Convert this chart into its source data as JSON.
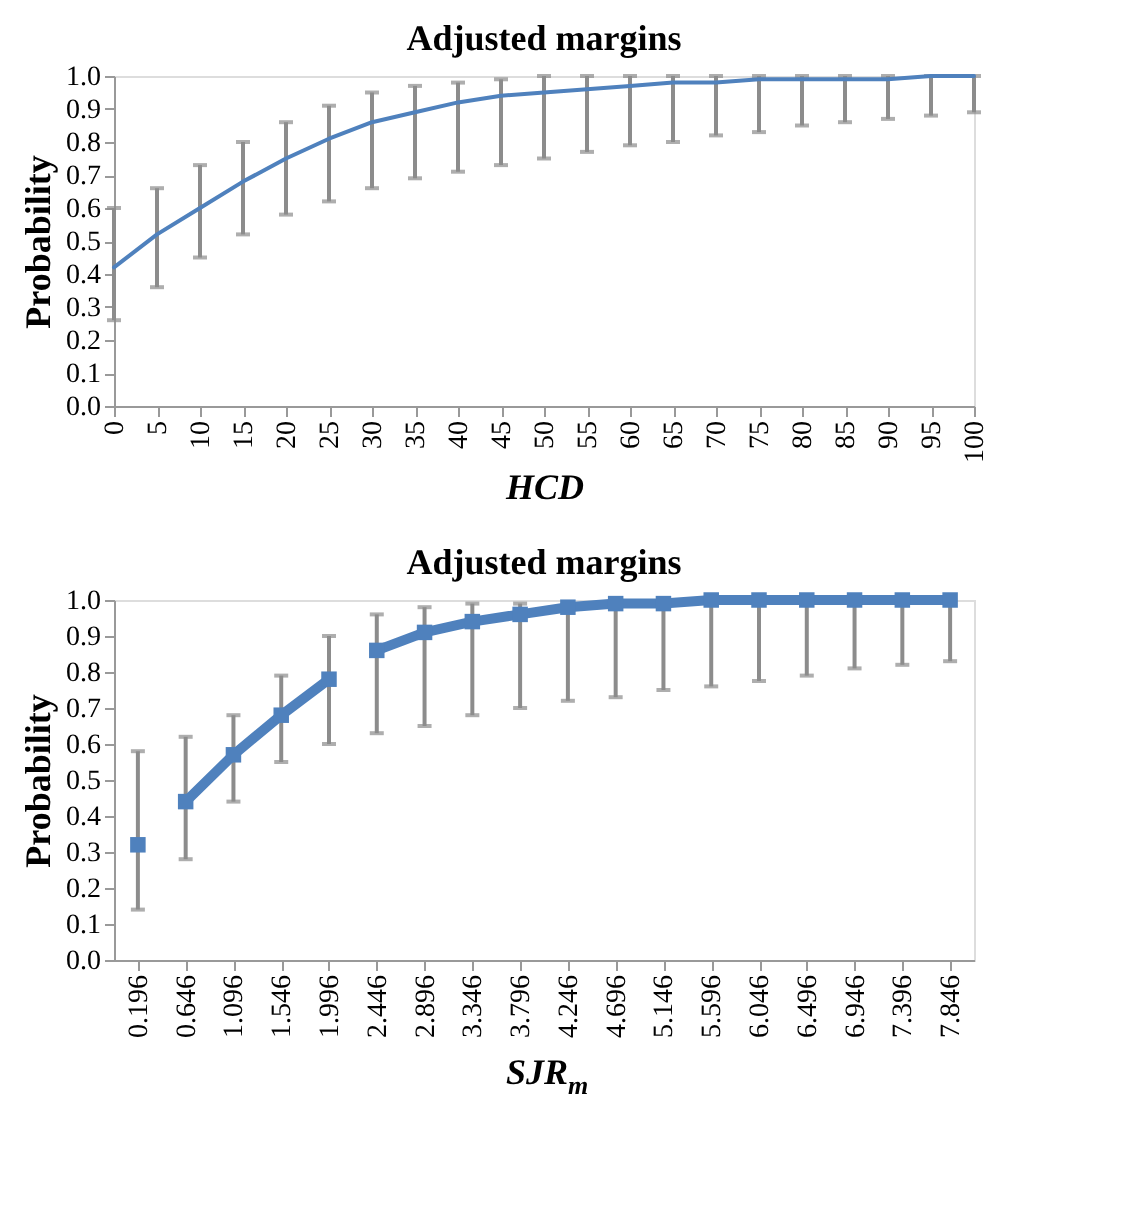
{
  "chart_data": [
    {
      "type": "line",
      "title": "Adjusted margins",
      "xlabel": "HCD",
      "ylabel": "Probability",
      "x": [
        0,
        5,
        10,
        15,
        20,
        25,
        30,
        35,
        40,
        45,
        50,
        55,
        60,
        65,
        70,
        75,
        80,
        85,
        90,
        95,
        100
      ],
      "xlim": [
        0,
        100
      ],
      "xticks": [
        0,
        5,
        10,
        15,
        20,
        25,
        30,
        35,
        40,
        45,
        50,
        55,
        60,
        65,
        70,
        75,
        80,
        85,
        90,
        95,
        100
      ],
      "ylim": [
        0,
        1
      ],
      "yticks": [
        {
          "value": 0,
          "label": "0.0"
        },
        {
          "value": 0.1,
          "label": "0.1"
        },
        {
          "value": 0.2,
          "label": "0.2"
        },
        {
          "value": 0.3,
          "label": "0.3"
        },
        {
          "value": 0.4,
          "label": "0.4"
        },
        {
          "value": 0.5,
          "label": "0.5"
        },
        {
          "value": 0.6,
          "label": "0.6"
        },
        {
          "value": 0.7,
          "label": "0.7"
        },
        {
          "value": 0.8,
          "label": "0.8"
        },
        {
          "value": 0.9,
          "label": "0.9"
        },
        {
          "value": 1,
          "label": "1.0"
        }
      ],
      "grid": false,
      "marker": "none",
      "line_style": "solid",
      "series": [
        {
          "color": "#4f81bd",
          "values": [
            0.42,
            0.52,
            0.6,
            0.68,
            0.75,
            0.81,
            0.86,
            0.89,
            0.92,
            0.94,
            0.95,
            0.96,
            0.97,
            0.98,
            0.98,
            0.99,
            0.99,
            0.99,
            0.99,
            1.0,
            1.0
          ],
          "errors": [
            [
              0.26,
              0.6
            ],
            [
              0.36,
              0.66
            ],
            [
              0.45,
              0.73
            ],
            [
              0.52,
              0.8
            ],
            [
              0.58,
              0.86
            ],
            [
              0.62,
              0.91
            ],
            [
              0.66,
              0.95
            ],
            [
              0.69,
              0.97
            ],
            [
              0.71,
              0.98
            ],
            [
              0.73,
              0.99
            ],
            [
              0.75,
              1.0
            ],
            [
              0.77,
              1.0
            ],
            [
              0.79,
              1.0
            ],
            [
              0.8,
              1.0
            ],
            [
              0.82,
              1.0
            ],
            [
              0.83,
              1.0
            ],
            [
              0.85,
              1.0
            ],
            [
              0.86,
              1.0
            ],
            [
              0.87,
              1.0
            ],
            [
              0.88,
              1.0
            ],
            [
              0.89,
              1.0
            ]
          ]
        }
      ]
    },
    {
      "type": "line",
      "title": "Adjusted margins",
      "xlabel": "SJR$_{m}$",
      "ylabel": "Probability",
      "categories": [
        "0.196",
        "0.646",
        "1.096",
        "1.546",
        "1.996",
        "2.446",
        "2.896",
        "3.346",
        "3.796",
        "4.246",
        "4.696",
        "5.146",
        "5.596",
        "6.046",
        "6.496",
        "6.946",
        "7.396",
        "7.846"
      ],
      "ylim": [
        0,
        1
      ],
      "yticks": [
        {
          "value": 0,
          "label": "0.0"
        },
        {
          "value": 0.1,
          "label": "0.1"
        },
        {
          "value": 0.2,
          "label": "0.2"
        },
        {
          "value": 0.3,
          "label": "0.3"
        },
        {
          "value": 0.4,
          "label": "0.4"
        },
        {
          "value": 0.5,
          "label": "0.5"
        },
        {
          "value": 0.6,
          "label": "0.6"
        },
        {
          "value": 0.7,
          "label": "0.7"
        },
        {
          "value": 0.8,
          "label": "0.8"
        },
        {
          "value": 0.9,
          "label": "0.9"
        },
        {
          "value": 1,
          "label": "1.0"
        }
      ],
      "grid": false,
      "marker": "square",
      "line_style": "solid",
      "series": [
        {
          "color": "#4f81bd",
          "values": [
            0.32,
            null,
            null,
            null,
            null,
            null,
            null,
            null,
            null,
            null,
            null,
            null,
            null,
            null,
            null,
            null,
            null,
            null
          ],
          "errors": [
            [
              0.14,
              0.58
            ],
            null,
            null,
            null,
            null,
            null,
            null,
            null,
            null,
            null,
            null,
            null,
            null,
            null,
            null,
            null,
            null,
            null
          ]
        },
        {
          "color": "#4f81bd",
          "values": [
            null,
            0.44,
            0.57,
            0.68,
            0.78,
            null,
            null,
            null,
            null,
            null,
            null,
            null,
            null,
            null,
            null,
            null,
            null,
            null
          ],
          "errors": [
            null,
            [
              0.28,
              0.62
            ],
            [
              0.44,
              0.68
            ],
            [
              0.55,
              0.79
            ],
            [
              0.6,
              0.9
            ],
            null,
            null,
            null,
            null,
            null,
            null,
            null,
            null,
            null,
            null,
            null,
            null,
            null
          ]
        },
        {
          "color": "#4f81bd",
          "values": [
            null,
            null,
            null,
            null,
            null,
            0.86,
            0.91,
            0.94,
            0.96,
            0.98,
            0.99,
            0.99,
            1.0,
            1.0,
            1.0,
            1.0,
            1.0,
            1.0
          ],
          "errors": [
            null,
            null,
            null,
            null,
            null,
            [
              0.63,
              0.96
            ],
            [
              0.65,
              0.98
            ],
            [
              0.68,
              0.99
            ],
            [
              0.7,
              0.99
            ],
            [
              0.72,
              0.99
            ],
            [
              0.73,
              0.99
            ],
            [
              0.75,
              1.0
            ],
            [
              0.76,
              1.0
            ],
            [
              0.775,
              1.0
            ],
            [
              0.79,
              1.0
            ],
            [
              0.81,
              1.0
            ],
            [
              0.82,
              1.0
            ],
            [
              0.83,
              1.0
            ]
          ]
        }
      ]
    }
  ]
}
